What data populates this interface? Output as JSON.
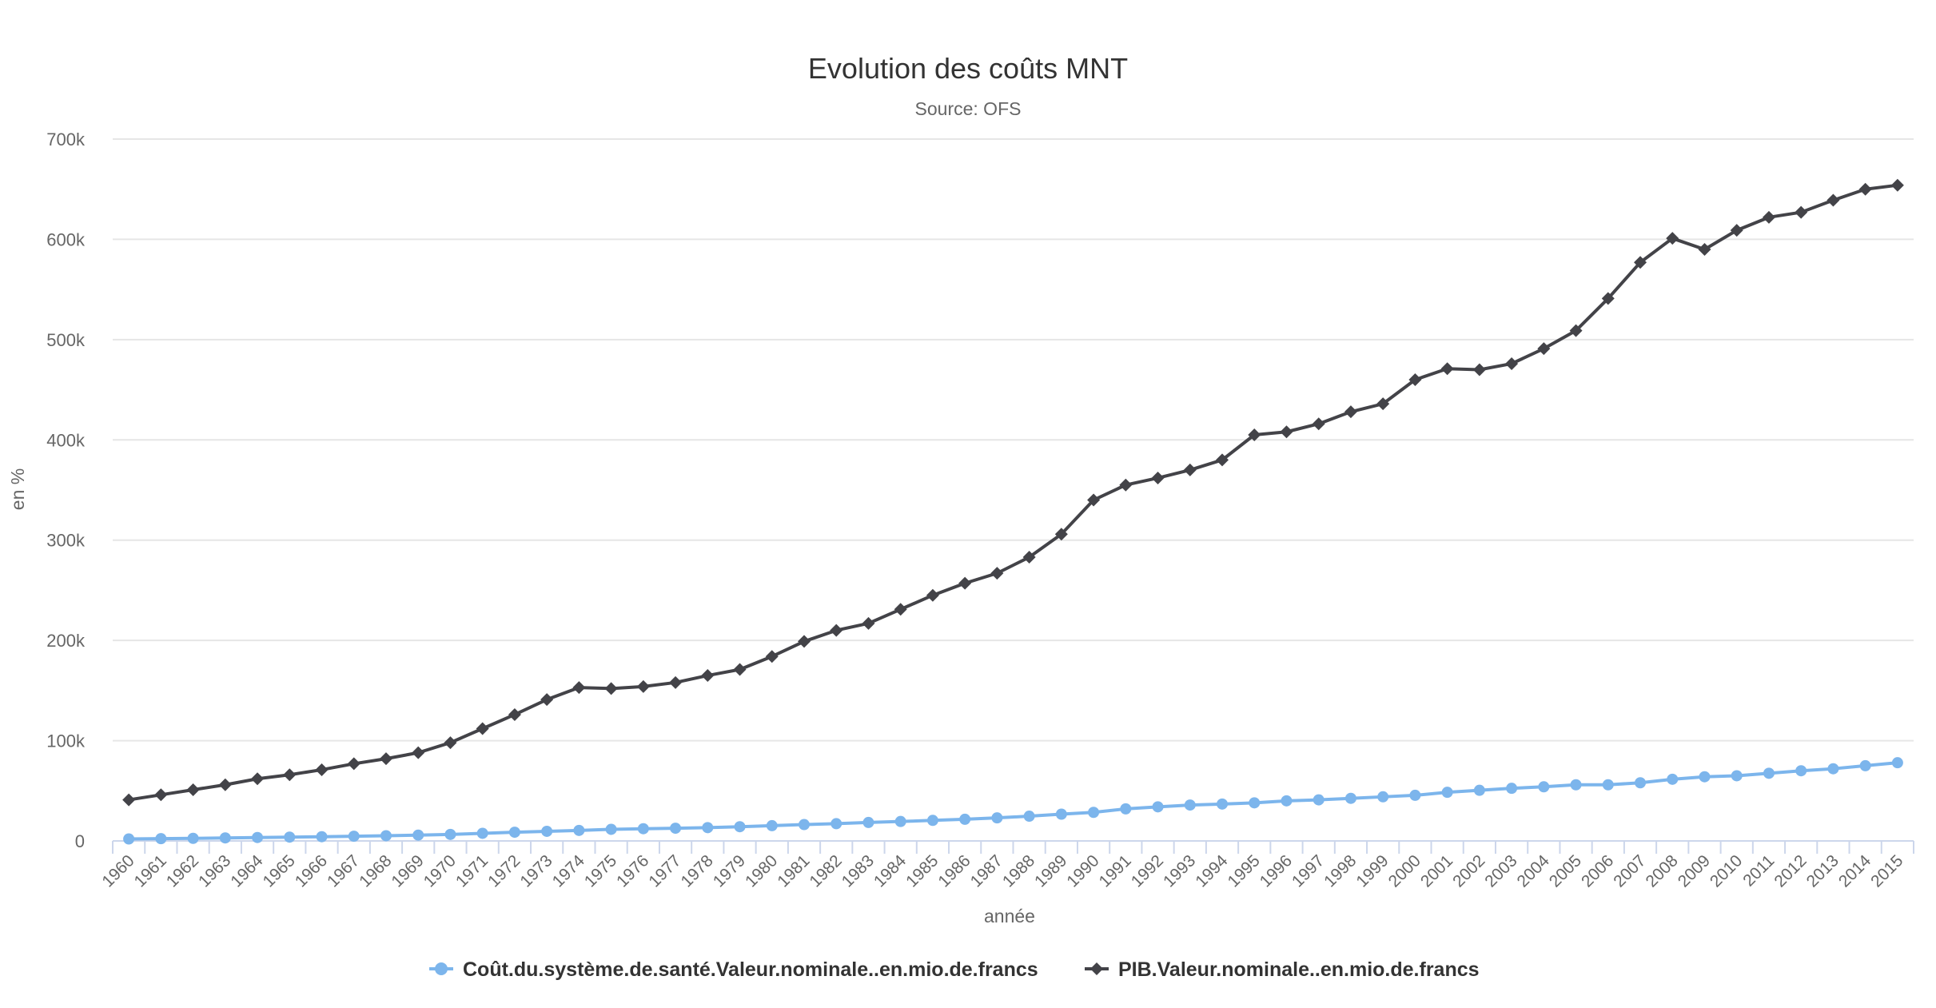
{
  "chart_data": {
    "type": "line",
    "title": "Evolution des coûts MNT",
    "subtitle": "Source: OFS",
    "xlabel": "année",
    "ylabel": "en %",
    "ylim": [
      0,
      700000
    ],
    "yticks": [
      0,
      100000,
      200000,
      300000,
      400000,
      500000,
      600000,
      700000
    ],
    "ytick_labels": [
      "0",
      "100k",
      "200k",
      "300k",
      "400k",
      "500k",
      "600k",
      "700k"
    ],
    "grid": true,
    "legend_position": "bottom-center",
    "categories": [
      "1960",
      "1961",
      "1962",
      "1963",
      "1964",
      "1965",
      "1966",
      "1967",
      "1968",
      "1969",
      "1970",
      "1971",
      "1972",
      "1973",
      "1974",
      "1975",
      "1976",
      "1977",
      "1978",
      "1979",
      "1980",
      "1981",
      "1982",
      "1983",
      "1984",
      "1985",
      "1986",
      "1987",
      "1988",
      "1989",
      "1990",
      "1991",
      "1992",
      "1993",
      "1994",
      "1995",
      "1996",
      "1997",
      "1998",
      "1999",
      "2000",
      "2001",
      "2002",
      "2003",
      "2004",
      "2005",
      "2006",
      "2007",
      "2008",
      "2009",
      "2010",
      "2011",
      "2012",
      "2013",
      "2014",
      "2015"
    ],
    "series": [
      {
        "name": "Coût.du.système.de.santé.Valeur.nominale..en.mio.de.francs",
        "color": "#7cb5ec",
        "marker": "circle",
        "values": [
          2000,
          2300,
          2600,
          3000,
          3400,
          3800,
          4200,
          4700,
          5200,
          5800,
          6500,
          7600,
          8700,
          9600,
          10500,
          11600,
          12200,
          12700,
          13300,
          14200,
          15200,
          16300,
          17200,
          18400,
          19400,
          20500,
          21600,
          23000,
          24700,
          26700,
          28500,
          32000,
          34000,
          35800,
          36800,
          38000,
          40000,
          41000,
          42500,
          44000,
          45500,
          48500,
          50500,
          52500,
          54000,
          56000,
          56000,
          58000,
          61500,
          64000,
          65000,
          67500,
          70000,
          72000,
          75000,
          78000
        ]
      },
      {
        "name": "PIB.Valeur.nominale..en.mio.de.francs",
        "color": "#434348",
        "marker": "diamond",
        "values": [
          41000,
          46000,
          51000,
          56000,
          62000,
          66000,
          71000,
          77000,
          82000,
          88000,
          98000,
          112000,
          126000,
          141000,
          153000,
          152000,
          154000,
          158000,
          165000,
          171000,
          184000,
          199000,
          210000,
          217000,
          231000,
          245000,
          257000,
          267000,
          283000,
          306000,
          340000,
          355000,
          362000,
          370000,
          380000,
          405000,
          408000,
          416000,
          428000,
          436000,
          460000,
          471000,
          470000,
          476000,
          491000,
          509000,
          541000,
          577000,
          601000,
          590000,
          609000,
          622000,
          627000,
          639000,
          650000,
          654000
        ]
      }
    ]
  }
}
